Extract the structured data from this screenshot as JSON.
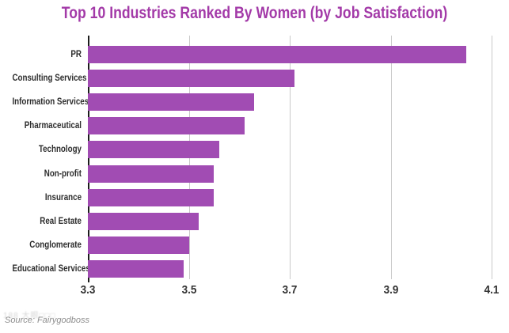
{
  "title": "Top 10 Industries Ranked By Women (by Job Satisfaction)",
  "source": "Source: Fairygodboss",
  "watermark": "188 大眼□□□",
  "colors": {
    "bar": "#A14CB3",
    "title": "#A33AA8",
    "gridline": "#c9c9c9",
    "y_axis_line": "#1c1c1c",
    "category_label": "#2d2d2d",
    "tick_label": "#333333",
    "source_text": "#8d8d8d"
  },
  "chart_data": {
    "type": "bar",
    "orientation": "horizontal",
    "title": "Top 10 Industries Ranked By Women (by Job Satisfaction)",
    "categories": [
      "PR",
      "Consulting Services",
      "Information Services",
      "Pharmaceutical",
      "Technology",
      "Non-profit",
      "Insurance",
      "Real Estate",
      "Conglomerate",
      "Educational Services"
    ],
    "values": [
      4.05,
      3.71,
      3.63,
      3.61,
      3.56,
      3.55,
      3.55,
      3.52,
      3.5,
      3.49
    ],
    "xlabel": "",
    "ylabel": "",
    "xlim": [
      3.3,
      4.1
    ],
    "xticks": [
      3.3,
      3.5,
      3.7,
      3.9,
      4.1
    ],
    "grid": "vertical-only",
    "legend": "none"
  }
}
